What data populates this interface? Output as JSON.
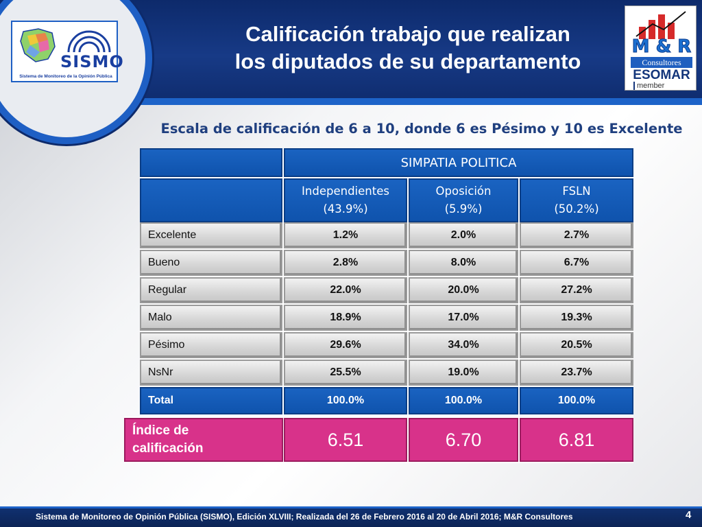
{
  "header": {
    "title_line1": "Calificación trabajo que realizan",
    "title_line2": "los diputados de su departamento"
  },
  "logos": {
    "sismo_word": "SISMO",
    "sismo_tagline": "Sistema de Monitoreo de la Opinión Pública",
    "mr_letters": "M & R",
    "mr_consultores": "Consultores",
    "esomar": "ESOMAR",
    "member": "member"
  },
  "subtitle": "Escala de calificación de 6 a 10, donde 6 es Pésimo y 10 es Excelente",
  "table": {
    "group_header": "SIMPATIA POLITICA",
    "columns": [
      {
        "name": "Independientes",
        "share": "(43.9%)"
      },
      {
        "name": "Oposición",
        "share": "(5.9%)"
      },
      {
        "name": "FSLN",
        "share": "(50.2%)"
      }
    ],
    "rows": [
      {
        "label": "Excelente",
        "values": [
          "1.2%",
          "2.0%",
          "2.7%"
        ]
      },
      {
        "label": "Bueno",
        "values": [
          "2.8%",
          "8.0%",
          "6.7%"
        ]
      },
      {
        "label": "Regular",
        "values": [
          "22.0%",
          "20.0%",
          "27.2%"
        ]
      },
      {
        "label": "Malo",
        "values": [
          "18.9%",
          "17.0%",
          "19.3%"
        ]
      },
      {
        "label": "Pésimo",
        "values": [
          "29.6%",
          "34.0%",
          "20.5%"
        ]
      },
      {
        "label": "NsNr",
        "values": [
          "25.5%",
          "19.0%",
          "23.7%"
        ]
      }
    ],
    "total": {
      "label": "Total",
      "values": [
        "100.0%",
        "100.0%",
        "100.0%"
      ]
    },
    "index": {
      "label_line1": "Índice de",
      "label_line2": "calificación",
      "values": [
        "6.51",
        "6.70",
        "6.81"
      ]
    }
  },
  "footer": {
    "text": "Sistema de Monitoreo de Opinión Pública (SISMO), Edición XLVIII; Realizada del  26 de Febrero 2016 al 20 de Abril 2016; M&R Consultores",
    "page_number": "4"
  },
  "colors": {
    "header_bg": "#0d2a6b",
    "table_blue": "#1a63c1",
    "index_pink": "#d8328a",
    "subtitle_text": "#1f3f7f"
  }
}
